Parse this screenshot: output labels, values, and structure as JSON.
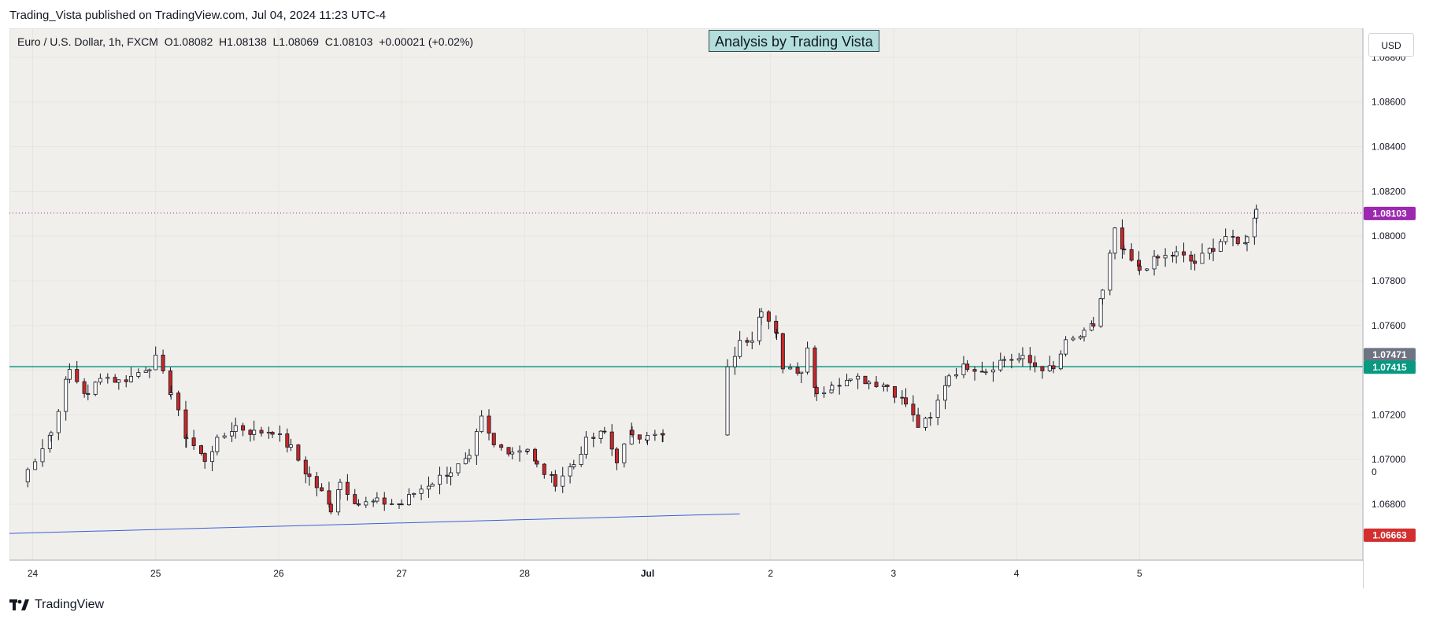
{
  "header": {
    "published_text": "Trading_Vista published on TradingView.com, Jul 04, 2024 11:23 UTC-4"
  },
  "legend": {
    "symbol": "Euro / U.S. Dollar, 1h, FXCM",
    "open": "O1.08082",
    "high": "H1.08138",
    "low": "L1.08069",
    "close": "C1.08103",
    "change": "+0.00021 (+0.02%)"
  },
  "banner": {
    "text": "Analysis by Trading Vista"
  },
  "currency_label": "USD",
  "footer": {
    "brand": "TradingView"
  },
  "colors": {
    "bullish": "#ffffff",
    "bearish": "#c62828",
    "candle_outline": "#131722",
    "support_line": "#089981",
    "trend_line": "#3b5fd6",
    "last_price_badge": "#9c27b0",
    "grey_badge": "#6f7482",
    "low_badge": "#d32f2f"
  },
  "chart_data": {
    "type": "candlestick",
    "title": "Euro / U.S. Dollar, 1h, FXCM",
    "ylim": [
      1.0655,
      1.0893
    ],
    "y_ticks": [
      1.068,
      1.07,
      1.072,
      1.074,
      1.076,
      1.078,
      1.08,
      1.082,
      1.084,
      1.086,
      1.088
    ],
    "y_tick_labels": [
      "1.06800",
      "1.07000",
      "1.07200",
      "1.07400",
      "1.07600",
      "1.07800",
      "1.08000",
      "1.08200",
      "1.08400",
      "1.08600",
      "1.08800"
    ],
    "extra_axis_label": "0",
    "x_labels": [
      {
        "label": "24",
        "day": 0,
        "bold": false
      },
      {
        "label": "25",
        "day": 1,
        "bold": false
      },
      {
        "label": "26",
        "day": 2,
        "bold": false
      },
      {
        "label": "27",
        "day": 3,
        "bold": false
      },
      {
        "label": "28",
        "day": 4,
        "bold": false
      },
      {
        "label": "Jul",
        "day": 5,
        "bold": true
      },
      {
        "label": "2",
        "day": 6,
        "bold": false
      },
      {
        "label": "3",
        "day": 7,
        "bold": false
      },
      {
        "label": "4",
        "day": 8,
        "bold": false
      },
      {
        "label": "5",
        "day": 9,
        "bold": false
      }
    ],
    "horizontal_line": {
      "price": 1.07415,
      "label": "1.07415"
    },
    "last_price": {
      "price": 1.08103,
      "label": "1.08103"
    },
    "price_badges": [
      {
        "price": 1.07471,
        "label": "1.07471",
        "style": "grey"
      },
      {
        "price": 1.06663,
        "label": "1.06663",
        "style": "red"
      }
    ],
    "trend_line": {
      "from": {
        "t": -1.2,
        "price": 1.06663
      },
      "to": {
        "t": 11.5,
        "price": 1.06757
      }
    },
    "series_points": [
      [
        -0.2,
        1.069
      ],
      [
        0.3,
        1.0712
      ],
      [
        0.6,
        1.074
      ],
      [
        0.9,
        1.0728
      ],
      [
        1.1,
        1.0738
      ],
      [
        1.4,
        1.0735
      ],
      [
        1.6,
        1.0737
      ],
      [
        1.9,
        1.0742
      ],
      [
        2.0,
        1.0745
      ],
      [
        2.25,
        1.073
      ],
      [
        2.5,
        1.071
      ],
      [
        2.8,
        1.07
      ],
      [
        3.0,
        1.0708
      ],
      [
        3.3,
        1.0715
      ],
      [
        3.6,
        1.0712
      ],
      [
        3.9,
        1.0713
      ],
      [
        4.2,
        1.0705
      ],
      [
        4.5,
        1.0692
      ],
      [
        4.7,
        1.0685
      ],
      [
        4.85,
        1.0678
      ],
      [
        5.0,
        1.069
      ],
      [
        5.3,
        1.068
      ],
      [
        5.6,
        1.0681
      ],
      [
        6.0,
        1.068
      ],
      [
        6.2,
        1.0685
      ],
      [
        6.5,
        1.069
      ],
      [
        6.8,
        1.0695
      ],
      [
        7.1,
        1.07
      ],
      [
        7.3,
        1.0718
      ],
      [
        7.5,
        1.0706
      ],
      [
        7.8,
        1.0704
      ],
      [
        8.05,
        1.0705
      ],
      [
        8.2,
        1.0697
      ],
      [
        8.5,
        1.069
      ],
      [
        8.8,
        1.0698
      ],
      [
        9.0,
        1.0708
      ],
      [
        9.3,
        1.0712
      ],
      [
        9.5,
        1.07
      ],
      [
        9.75,
        1.0712
      ],
      [
        10.0,
        1.071
      ],
      [
        10.25,
        1.0711
      ],
      [
        11.3,
        1.074
      ],
      [
        11.5,
        1.0752
      ],
      [
        11.7,
        1.0755
      ],
      [
        11.85,
        1.0768
      ],
      [
        12.1,
        1.0755
      ],
      [
        12.2,
        1.0742
      ],
      [
        12.5,
        1.074
      ],
      [
        12.6,
        1.075
      ],
      [
        12.75,
        1.073
      ],
      [
        13.0,
        1.0732
      ],
      [
        13.3,
        1.0738
      ],
      [
        13.6,
        1.0735
      ],
      [
        13.9,
        1.0733
      ],
      [
        14.2,
        1.0725
      ],
      [
        14.4,
        1.0715
      ],
      [
        14.6,
        1.0718
      ],
      [
        14.9,
        1.0738
      ],
      [
        15.2,
        1.0742
      ],
      [
        15.5,
        1.074
      ],
      [
        15.8,
        1.0745
      ],
      [
        16.1,
        1.0745
      ],
      [
        16.3,
        1.0742
      ],
      [
        16.6,
        1.074
      ],
      [
        16.8,
        1.0752
      ],
      [
        17.1,
        1.0756
      ],
      [
        17.25,
        1.076
      ],
      [
        17.4,
        1.0775
      ],
      [
        17.6,
        1.0802
      ],
      [
        17.75,
        1.0792
      ],
      [
        18.0,
        1.0785
      ],
      [
        18.3,
        1.079
      ],
      [
        18.6,
        1.0792
      ],
      [
        18.9,
        1.0788
      ],
      [
        19.2,
        1.0795
      ],
      [
        19.4,
        1.08
      ],
      [
        19.6,
        1.0796
      ],
      [
        19.75,
        1.0799
      ],
      [
        19.9,
        1.0812
      ]
    ]
  }
}
